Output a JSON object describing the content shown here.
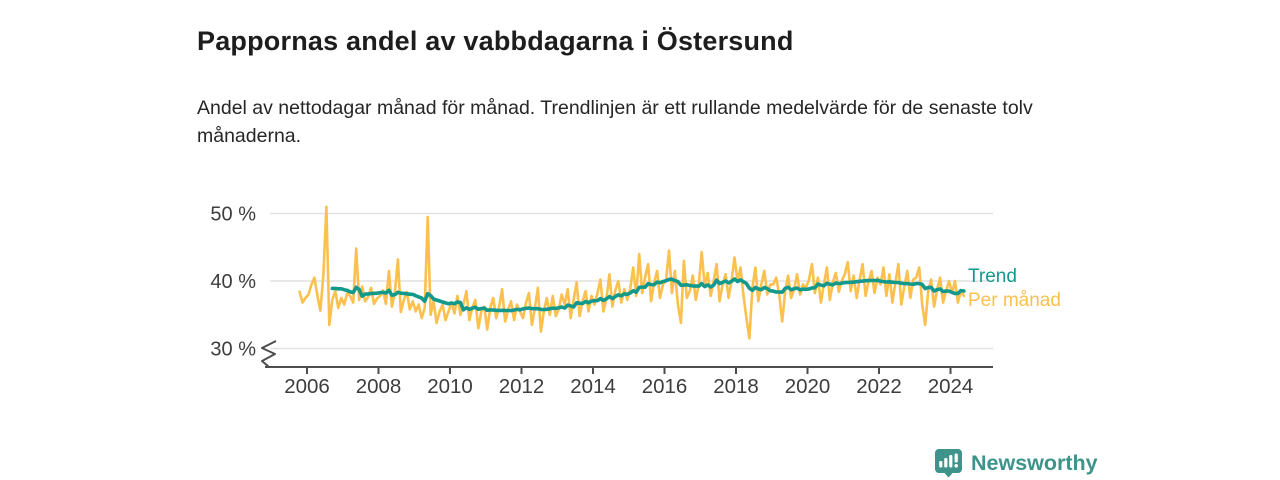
{
  "header": {
    "title": "Pappornas andel av vabbdagarna i Östersund",
    "subtitle": "Andel av nettodagar månad för månad. Trendlinjen är ett rullande medelvärde för de senaste tolv månaderna."
  },
  "legend": {
    "trend_label": "Trend",
    "monthly_label": "Per månad"
  },
  "footer": {
    "brand": "Newsworthy"
  },
  "colors": {
    "monthly": "#FBC04D",
    "trend": "#12998B",
    "brand": "#3E938A",
    "grid": "#E1E1E1",
    "axis": "#4D4D4D",
    "text": "#3D3D3D",
    "title_text": "#1D1D1D"
  },
  "chart_data": {
    "type": "line",
    "title": "Pappornas andel av vabbdagarna i Östersund",
    "unit": "%",
    "grid": true,
    "legend_position": "right-of-line-ends",
    "y_axis": {
      "ticks": [
        50,
        40,
        30
      ],
      "tick_labels": [
        "50 %",
        "40 %",
        "30 %"
      ],
      "range_shown": [
        30,
        51.5
      ],
      "axis_break": true
    },
    "x_axis": {
      "tick_years": [
        2006,
        2008,
        2010,
        2012,
        2014,
        2016,
        2018,
        2020,
        2022,
        2024
      ]
    },
    "start_month": "2005-10",
    "series": [
      {
        "name": "Per månad",
        "kind": "monthly_values",
        "values": [
          38.4,
          36.8,
          37.5,
          38.0,
          39.5,
          40.5,
          37.8,
          35.6,
          41.0,
          51.0,
          33.5,
          37.2,
          38.5,
          36.0,
          37.5,
          36.5,
          38.2,
          37.8,
          36.8,
          44.8,
          37.2,
          39.2,
          37.0,
          37.6,
          39.0,
          36.6,
          37.4,
          37.8,
          38.6,
          36.6,
          41.5,
          36.2,
          38.4,
          43.2,
          35.4,
          37.2,
          38.4,
          35.8,
          37.0,
          35.5,
          36.5,
          34.5,
          36.0,
          49.5,
          35.0,
          37.0,
          33.8,
          35.5,
          36.5,
          34.2,
          35.5,
          36.8,
          35.2,
          37.8,
          35.0,
          36.5,
          38.5,
          34.2,
          36.0,
          37.2,
          33.0,
          35.5,
          36.2,
          32.8,
          36.0,
          37.5,
          34.5,
          36.2,
          38.8,
          34.0,
          35.8,
          37.0,
          34.2,
          36.5,
          35.5,
          34.5,
          36.8,
          38.2,
          33.5,
          36.0,
          39.0,
          32.5,
          35.5,
          37.5,
          35.0,
          37.8,
          34.8,
          35.8,
          38.0,
          36.5,
          38.8,
          34.5,
          37.2,
          39.8,
          34.8,
          37.0,
          38.5,
          35.5,
          37.8,
          36.5,
          38.2,
          40.2,
          35.5,
          37.4,
          41.0,
          36.2,
          38.6,
          40.0,
          36.8,
          38.8,
          37.2,
          38.8,
          42.0,
          37.8,
          44.0,
          38.2,
          40.5,
          42.5,
          37.0,
          39.8,
          41.5,
          37.5,
          39.5,
          40.0,
          44.5,
          38.2,
          41.5,
          36.5,
          33.8,
          43.0,
          37.5,
          38.5,
          40.8,
          37.2,
          39.5,
          44.3,
          39.2,
          41.2,
          37.8,
          40.0,
          42.5,
          37.0,
          39.5,
          41.0,
          37.5,
          40.0,
          43.5,
          40.0,
          42.0,
          38.0,
          34.5,
          31.5,
          39.0,
          42.0,
          37.0,
          39.5,
          41.5,
          38.0,
          39.5,
          39.5,
          40.5,
          38.0,
          34.0,
          38.5,
          40.8,
          37.5,
          38.8,
          41.0,
          38.0,
          39.5,
          39.0,
          40.2,
          42.5,
          38.2,
          40.5,
          36.8,
          39.5,
          42.0,
          37.2,
          39.8,
          41.2,
          38.4,
          40.0,
          41.0,
          42.8,
          38.5,
          40.8,
          37.5,
          40.2,
          42.5,
          37.8,
          40.0,
          41.5,
          38.2,
          40.5,
          39.5,
          42.0,
          37.8,
          41.0,
          36.8,
          39.8,
          42.5,
          36.5,
          39.2,
          41.5,
          37.5,
          40.2,
          40.5,
          42.0,
          36.5,
          33.5,
          38.5,
          40.2,
          36.2,
          38.8,
          40.5,
          36.8,
          38.5,
          40.0,
          38.2,
          40.0,
          36.8,
          38.5,
          37.8
        ]
      },
      {
        "name": "Trend",
        "kind": "rolling_mean",
        "window_months": 12
      }
    ]
  }
}
